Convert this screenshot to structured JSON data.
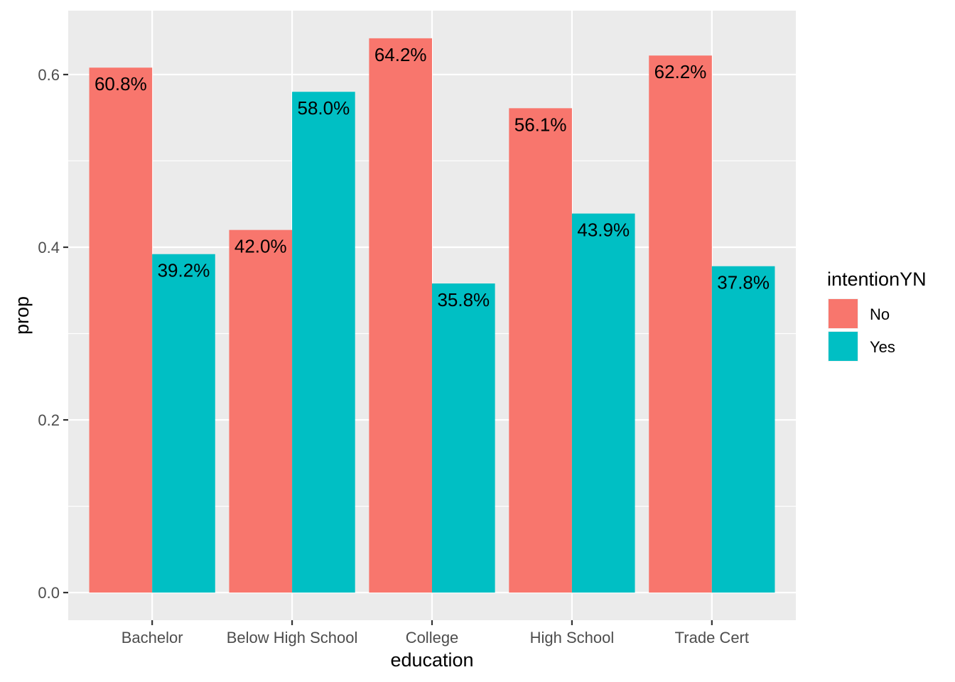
{
  "chart_data": {
    "type": "bar",
    "categories": [
      "Bachelor",
      "Below High School",
      "College",
      "High School",
      "Trade Cert"
    ],
    "series": [
      {
        "name": "No",
        "color": "#F8766D",
        "values": [
          0.608,
          0.42,
          0.642,
          0.561,
          0.622
        ],
        "labels": [
          "60.8%",
          "42.0%",
          "64.2%",
          "56.1%",
          "62.2%"
        ]
      },
      {
        "name": "Yes",
        "color": "#00BFC4",
        "values": [
          0.392,
          0.58,
          0.358,
          0.439,
          0.378
        ],
        "labels": [
          "39.2%",
          "58.0%",
          "35.8%",
          "43.9%",
          "37.8%"
        ]
      }
    ],
    "xlabel": "education",
    "ylabel": "prop",
    "ylim": [
      -0.032,
      0.674
    ],
    "yticks": [
      0.0,
      0.2,
      0.4,
      0.6
    ],
    "ytick_labels": [
      "0.0",
      "0.2",
      "0.4",
      "0.6"
    ],
    "grid": true,
    "legend": {
      "title": "intentionYN",
      "position": "right"
    },
    "panel_background": "#EBEBEB"
  }
}
